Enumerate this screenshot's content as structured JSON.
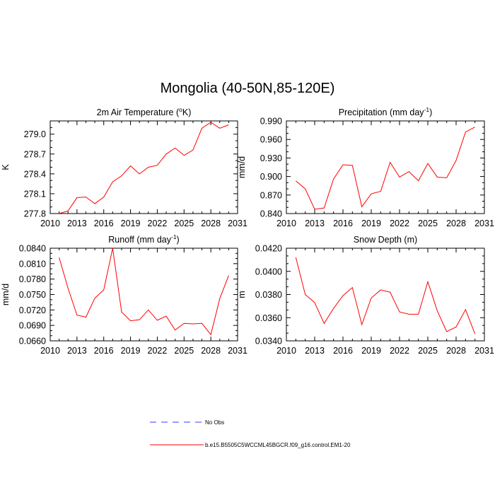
{
  "title": "Mongolia (40-50N,85-120E)",
  "legend": [
    {
      "label": "No Obs",
      "color": "#3b3bff",
      "dash": "dashed"
    },
    {
      "label": "b.e15.B5505C5WCCML45BGCR.f09_g16.control.EM1-20",
      "color": "#ff0000",
      "dash": "solid"
    }
  ],
  "chart_data": [
    {
      "type": "line",
      "title": "2m Air Temperature (°K)",
      "title_main": "2m Air Temperature (",
      "title_sup": "o",
      "title_tail": "K)",
      "ylabel": "K",
      "xlim": [
        2010,
        2031
      ],
      "ylim": [
        277.8,
        279.2
      ],
      "xticks": [
        2010,
        2013,
        2016,
        2019,
        2022,
        2025,
        2028,
        2031
      ],
      "yticks": [
        277.8,
        278.1,
        278.4,
        278.7,
        279.0
      ],
      "ytick_labels": [
        "277.8",
        "278.1",
        "278.4",
        "278.7",
        "279.0"
      ],
      "x": [
        2011,
        2012,
        2013,
        2014,
        2015,
        2016,
        2017,
        2018,
        2019,
        2020,
        2021,
        2022,
        2023,
        2024,
        2025,
        2026,
        2027,
        2028,
        2029,
        2030
      ],
      "series": [
        {
          "name": "b.e15.B5505C5WCCML45BGCR.f09_g16.control.EM1-20",
          "color": "#ff0000",
          "values": [
            277.8,
            277.84,
            278.04,
            278.05,
            277.95,
            278.05,
            278.28,
            278.37,
            278.52,
            278.4,
            278.5,
            278.53,
            278.7,
            278.79,
            278.68,
            278.76,
            279.09,
            279.18,
            279.09,
            279.14
          ]
        }
      ]
    },
    {
      "type": "line",
      "title": "Precipitation (mm day-1)",
      "title_main": "Precipitation (mm day",
      "title_sup": "-1",
      "title_tail": ")",
      "ylabel": "mm/d",
      "xlim": [
        2010,
        2031
      ],
      "ylim": [
        0.84,
        0.99
      ],
      "xticks": [
        2010,
        2013,
        2016,
        2019,
        2022,
        2025,
        2028,
        2031
      ],
      "yticks": [
        0.84,
        0.87,
        0.9,
        0.93,
        0.96,
        0.99
      ],
      "ytick_labels": [
        "0.840",
        "0.870",
        "0.900",
        "0.930",
        "0.960",
        "0.990"
      ],
      "x": [
        2011,
        2012,
        2013,
        2014,
        2015,
        2016,
        2017,
        2018,
        2019,
        2020,
        2021,
        2022,
        2023,
        2024,
        2025,
        2026,
        2027,
        2028,
        2029,
        2030
      ],
      "series": [
        {
          "name": "b.e15.B5505C5WCCML45BGCR.f09_g16.control.EM1-20",
          "color": "#ff0000",
          "values": [
            0.893,
            0.88,
            0.847,
            0.849,
            0.896,
            0.919,
            0.918,
            0.851,
            0.872,
            0.876,
            0.923,
            0.899,
            0.908,
            0.893,
            0.921,
            0.899,
            0.898,
            0.926,
            0.972,
            0.98
          ]
        }
      ]
    },
    {
      "type": "line",
      "title": "Runoff (mm day-1)",
      "title_main": "Runoff (mm day",
      "title_sup": "-1",
      "title_tail": ")",
      "ylabel": "mm/d",
      "xlim": [
        2010,
        2031
      ],
      "ylim": [
        0.066,
        0.084
      ],
      "xticks": [
        2010,
        2013,
        2016,
        2019,
        2022,
        2025,
        2028,
        2031
      ],
      "yticks": [
        0.066,
        0.069,
        0.072,
        0.075,
        0.078,
        0.081,
        0.084
      ],
      "ytick_labels": [
        "0.0660",
        "0.0690",
        "0.0720",
        "0.0750",
        "0.0780",
        "0.0810",
        "0.0840"
      ],
      "x": [
        2011,
        2012,
        2013,
        2014,
        2015,
        2016,
        2017,
        2018,
        2019,
        2020,
        2021,
        2022,
        2023,
        2024,
        2025,
        2026,
        2027,
        2028,
        2029,
        2030
      ],
      "series": [
        {
          "name": "b.e15.B5505C5WCCML45BGCR.f09_g16.control.EM1-20",
          "color": "#ff0000",
          "values": [
            0.0822,
            0.0762,
            0.071,
            0.0706,
            0.0743,
            0.0759,
            0.084,
            0.0716,
            0.0699,
            0.0701,
            0.072,
            0.07,
            0.0708,
            0.0681,
            0.0694,
            0.0693,
            0.0694,
            0.0672,
            0.0742,
            0.0787
          ]
        }
      ]
    },
    {
      "type": "line",
      "title": "Snow Depth (m)",
      "title_main": "Snow Depth (m)",
      "title_sup": "",
      "title_tail": "",
      "ylabel": "m",
      "xlim": [
        2010,
        2031
      ],
      "ylim": [
        0.034,
        0.042
      ],
      "xticks": [
        2010,
        2013,
        2016,
        2019,
        2022,
        2025,
        2028,
        2031
      ],
      "yticks": [
        0.034,
        0.036,
        0.038,
        0.04,
        0.042
      ],
      "ytick_labels": [
        "0.0340",
        "0.0360",
        "0.0380",
        "0.0400",
        "0.0420"
      ],
      "x": [
        2011,
        2012,
        2013,
        2014,
        2015,
        2016,
        2017,
        2018,
        2019,
        2020,
        2021,
        2022,
        2023,
        2024,
        2025,
        2026,
        2027,
        2028,
        2029,
        2030
      ],
      "series": [
        {
          "name": "b.e15.B5505C5WCCML45BGCR.f09_g16.control.EM1-20",
          "color": "#ff0000",
          "values": [
            0.0412,
            0.038,
            0.0373,
            0.0355,
            0.0368,
            0.0379,
            0.0386,
            0.0354,
            0.0377,
            0.0384,
            0.0382,
            0.0365,
            0.0363,
            0.0363,
            0.0391,
            0.0366,
            0.0348,
            0.0352,
            0.0367,
            0.0346
          ]
        }
      ]
    }
  ]
}
